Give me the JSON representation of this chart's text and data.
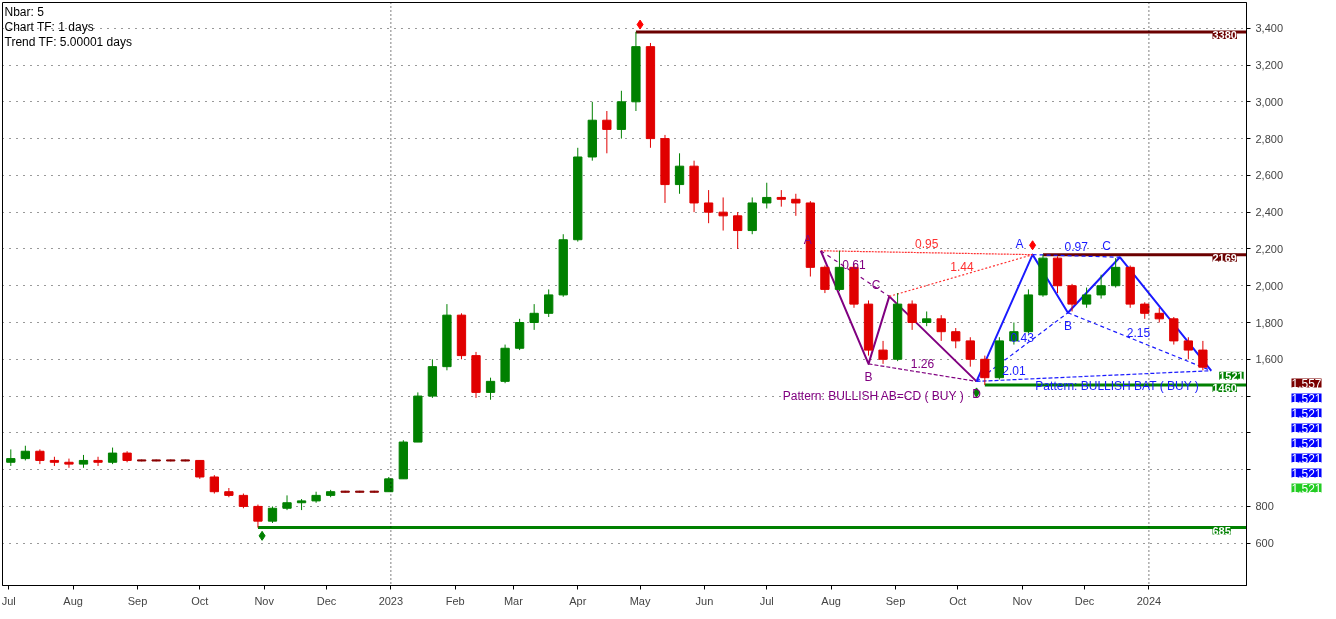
{
  "chart_data": {
    "type": "candlestick",
    "x": [
      "2022-07-02",
      "2022-07-09",
      "2022-07-16",
      "2022-07-23",
      "2022-07-30",
      "2022-08-06",
      "2022-08-13",
      "2022-08-20",
      "2022-08-27",
      "2022-09-03",
      "2022-09-10",
      "2022-09-17",
      "2022-09-24",
      "2022-10-01",
      "2022-10-08",
      "2022-10-15",
      "2022-10-22",
      "2022-10-29",
      "2022-11-05",
      "2022-11-12",
      "2022-11-19",
      "2022-11-26",
      "2022-12-03",
      "2022-12-10",
      "2022-12-17",
      "2022-12-24",
      "2022-12-31",
      "2023-01-07",
      "2023-01-14",
      "2023-01-21",
      "2023-01-28",
      "2023-02-04",
      "2023-02-11",
      "2023-02-18",
      "2023-02-25",
      "2023-03-04",
      "2023-03-11",
      "2023-03-18",
      "2023-03-25",
      "2023-04-01",
      "2023-04-08",
      "2023-04-15",
      "2023-04-22",
      "2023-04-29",
      "2023-05-06",
      "2023-05-13",
      "2023-05-20",
      "2023-05-27",
      "2023-06-03",
      "2023-06-10",
      "2023-06-17",
      "2023-06-24",
      "2023-07-01",
      "2023-07-08",
      "2023-07-15",
      "2023-07-22",
      "2023-07-29",
      "2023-08-05",
      "2023-08-12",
      "2023-08-19",
      "2023-08-26",
      "2023-09-02",
      "2023-09-09",
      "2023-09-16",
      "2023-09-23",
      "2023-09-30",
      "2023-10-07",
      "2023-10-14",
      "2023-10-21",
      "2023-10-28",
      "2023-11-04",
      "2023-11-11",
      "2023-11-18",
      "2023-11-25",
      "2023-12-02",
      "2023-12-09",
      "2023-12-16",
      "2023-12-23",
      "2023-12-30",
      "2024-01-06",
      "2024-01-13",
      "2024-01-20",
      "2024-01-27"
    ],
    "ohlc": [
      [
        1040,
        1110,
        1020,
        1060
      ],
      [
        1060,
        1130,
        1050,
        1100
      ],
      [
        1100,
        1110,
        1030,
        1050
      ],
      [
        1050,
        1070,
        1020,
        1040
      ],
      [
        1040,
        1060,
        1010,
        1030
      ],
      [
        1030,
        1080,
        1010,
        1050
      ],
      [
        1050,
        1070,
        1020,
        1040
      ],
      [
        1040,
        1120,
        1030,
        1090
      ],
      [
        1090,
        1100,
        1040,
        1050
      ],
      [
        1050,
        1055,
        1045,
        1050
      ],
      [
        1050,
        1055,
        1045,
        1050
      ],
      [
        1050,
        1055,
        1045,
        1050
      ],
      [
        1050,
        1055,
        1045,
        1050
      ],
      [
        1050,
        1050,
        950,
        960
      ],
      [
        960,
        970,
        870,
        880
      ],
      [
        880,
        900,
        850,
        860
      ],
      [
        860,
        870,
        790,
        800
      ],
      [
        800,
        810,
        685,
        720
      ],
      [
        720,
        800,
        710,
        790
      ],
      [
        790,
        860,
        780,
        820
      ],
      [
        820,
        840,
        780,
        830
      ],
      [
        830,
        880,
        820,
        860
      ],
      [
        860,
        890,
        850,
        880
      ],
      [
        880,
        885,
        875,
        880
      ],
      [
        880,
        885,
        875,
        880
      ],
      [
        880,
        885,
        875,
        880
      ],
      [
        880,
        960,
        880,
        950
      ],
      [
        950,
        1160,
        950,
        1150
      ],
      [
        1150,
        1420,
        1150,
        1400
      ],
      [
        1400,
        1600,
        1390,
        1560
      ],
      [
        1560,
        1900,
        1540,
        1840
      ],
      [
        1840,
        1850,
        1600,
        1620
      ],
      [
        1620,
        1640,
        1390,
        1420
      ],
      [
        1420,
        1500,
        1380,
        1480
      ],
      [
        1480,
        1680,
        1470,
        1660
      ],
      [
        1660,
        1820,
        1650,
        1800
      ],
      [
        1800,
        1900,
        1760,
        1850
      ],
      [
        1850,
        1980,
        1830,
        1950
      ],
      [
        1950,
        2280,
        1940,
        2250
      ],
      [
        2250,
        2750,
        2240,
        2700
      ],
      [
        2700,
        3000,
        2680,
        2900
      ],
      [
        2900,
        2950,
        2720,
        2850
      ],
      [
        2850,
        3060,
        2800,
        3000
      ],
      [
        3000,
        3380,
        2950,
        3300
      ],
      [
        3300,
        3320,
        2750,
        2800
      ],
      [
        2800,
        2820,
        2450,
        2550
      ],
      [
        2550,
        2720,
        2500,
        2650
      ],
      [
        2650,
        2680,
        2400,
        2450
      ],
      [
        2450,
        2520,
        2340,
        2400
      ],
      [
        2400,
        2480,
        2300,
        2380
      ],
      [
        2380,
        2400,
        2200,
        2300
      ],
      [
        2300,
        2480,
        2280,
        2450
      ],
      [
        2450,
        2560,
        2420,
        2480
      ],
      [
        2480,
        2520,
        2430,
        2470
      ],
      [
        2470,
        2500,
        2380,
        2450
      ],
      [
        2450,
        2460,
        2050,
        2100
      ],
      [
        2100,
        2110,
        1960,
        1980
      ],
      [
        1980,
        2190,
        1970,
        2100
      ],
      [
        2100,
        2120,
        1880,
        1900
      ],
      [
        1900,
        1920,
        1620,
        1650
      ],
      [
        1650,
        1700,
        1575,
        1600
      ],
      [
        1600,
        1960,
        1590,
        1900
      ],
      [
        1900,
        1920,
        1760,
        1800
      ],
      [
        1800,
        1860,
        1780,
        1820
      ],
      [
        1820,
        1840,
        1700,
        1750
      ],
      [
        1750,
        1770,
        1660,
        1700
      ],
      [
        1700,
        1720,
        1560,
        1600
      ],
      [
        1600,
        1620,
        1460,
        1500
      ],
      [
        1500,
        1720,
        1490,
        1700
      ],
      [
        1700,
        1800,
        1680,
        1750
      ],
      [
        1750,
        1980,
        1740,
        1950
      ],
      [
        1950,
        2169,
        1940,
        2150
      ],
      [
        2150,
        2160,
        1960,
        2000
      ],
      [
        2000,
        2010,
        1860,
        1900
      ],
      [
        1900,
        1990,
        1880,
        1950
      ],
      [
        1950,
        2060,
        1930,
        2000
      ],
      [
        2000,
        2150,
        1990,
        2100
      ],
      [
        2100,
        2110,
        1880,
        1900
      ],
      [
        1900,
        1910,
        1820,
        1850
      ],
      [
        1850,
        1880,
        1800,
        1820
      ],
      [
        1820,
        1830,
        1680,
        1700
      ],
      [
        1700,
        1720,
        1600,
        1650
      ],
      [
        1650,
        1700,
        1540,
        1557
      ]
    ],
    "colors": [
      "#008000",
      "#008000",
      "#e00000",
      "#e00000",
      "#e00000",
      "#008000",
      "#e00000",
      "#008000",
      "#e00000",
      "#8b0000",
      "#8b0000",
      "#8b0000",
      "#8b0000",
      "#e00000",
      "#e00000",
      "#e00000",
      "#e00000",
      "#e00000",
      "#008000",
      "#008000",
      "#008000",
      "#008000",
      "#008000",
      "#8b0000",
      "#8b0000",
      "#8b0000",
      "#008000",
      "#008000",
      "#008000",
      "#008000",
      "#008000",
      "#e00000",
      "#e00000",
      "#008000",
      "#008000",
      "#008000",
      "#008000",
      "#008000",
      "#008000",
      "#008000",
      "#008000",
      "#e00000",
      "#008000",
      "#008000",
      "#e00000",
      "#e00000",
      "#008000",
      "#e00000",
      "#e00000",
      "#e00000",
      "#e00000",
      "#008000",
      "#008000",
      "#e00000",
      "#e00000",
      "#e00000",
      "#e00000",
      "#008000",
      "#e00000",
      "#e00000",
      "#e00000",
      "#008000",
      "#e00000",
      "#008000",
      "#e00000",
      "#e00000",
      "#e00000",
      "#e00000",
      "#008000",
      "#008000",
      "#008000",
      "#008000",
      "#e00000",
      "#e00000",
      "#008000",
      "#008000",
      "#008000",
      "#e00000",
      "#e00000",
      "#e00000",
      "#e00000",
      "#e00000",
      "#e00000"
    ],
    "series": [
      {
        "type": "line",
        "color": "#800080",
        "line_style": "solid",
        "x": [
          "2023-07-27",
          "2023-08-19",
          "2023-08-29",
          "2023-10-10"
        ],
        "values": [
          2190,
          1575,
          1942,
          1480
        ]
      },
      {
        "type": "line",
        "color": "#1a1aff",
        "line_style": "solid",
        "x": [
          "2023-10-10",
          "2023-11-06",
          "2023-11-23",
          "2023-12-18",
          "2024-01-31"
        ],
        "values": [
          1480,
          2169,
          1853,
          2155,
          1538
        ]
      },
      {
        "type": "line",
        "color": "#ff3030",
        "line_style": "dotted",
        "x": [
          "2023-07-27",
          "2023-11-06"
        ],
        "values": [
          2190,
          2169
        ]
      },
      {
        "type": "line",
        "color": "#ff3030",
        "line_style": "dotted",
        "x": [
          "2023-08-29",
          "2023-11-06"
        ],
        "values": [
          1942,
          2169
        ]
      },
      {
        "type": "line",
        "color": "#800080",
        "line_style": "dashed",
        "x": [
          "2023-07-27",
          "2023-08-29"
        ],
        "values": [
          2190,
          1942
        ]
      },
      {
        "type": "line",
        "color": "#800080",
        "line_style": "dashed",
        "x": [
          "2023-08-19",
          "2023-10-10"
        ],
        "values": [
          1575,
          1480
        ]
      },
      {
        "type": "line",
        "color": "#1a1aff",
        "line_style": "dashed",
        "x": [
          "2023-10-10",
          "2023-11-23"
        ],
        "values": [
          1480,
          1853
        ]
      },
      {
        "type": "line",
        "color": "#1a1aff",
        "line_style": "dashed",
        "x": [
          "2023-11-23",
          "2024-01-31"
        ],
        "values": [
          1853,
          1538
        ]
      },
      {
        "type": "line",
        "color": "#1a1aff",
        "line_style": "dashed",
        "x": [
          "2023-11-06",
          "2023-12-18"
        ],
        "values": [
          2169,
          2155
        ]
      },
      {
        "type": "line",
        "color": "#1a1aff",
        "line_style": "dashed",
        "x": [
          "2023-10-10",
          "2024-01-31"
        ],
        "values": [
          1480,
          1538
        ]
      },
      {
        "type": "scatter",
        "marker": "diamond",
        "x": [
          "2022-10-31",
          "2023-05-01",
          "2023-10-10",
          "2023-11-06"
        ],
        "values": [
          640,
          3420,
          1420,
          2220
        ],
        "colors": [
          "#008000",
          "#ff0000",
          "#008000",
          "#ff0000"
        ]
      }
    ],
    "xlim": [
      "2022-06-28",
      "2024-02-17"
    ],
    "xticks": [
      {
        "value": "2022-07-01",
        "label": "Jul"
      },
      {
        "value": "2022-08-01",
        "label": "Aug"
      },
      {
        "value": "2022-09-01",
        "label": "Sep"
      },
      {
        "value": "2022-10-01",
        "label": "Oct"
      },
      {
        "value": "2022-11-01",
        "label": "Nov"
      },
      {
        "value": "2022-12-01",
        "label": "Dec"
      },
      {
        "value": "2023-01-01",
        "label": "2023"
      },
      {
        "value": "2023-02-01",
        "label": "Feb"
      },
      {
        "value": "2023-03-01",
        "label": "Mar"
      },
      {
        "value": "2023-04-01",
        "label": "Apr"
      },
      {
        "value": "2023-05-01",
        "label": "May"
      },
      {
        "value": "2023-06-01",
        "label": "Jun"
      },
      {
        "value": "2023-07-01",
        "label": "Jul"
      },
      {
        "value": "2023-08-01",
        "label": "Aug"
      },
      {
        "value": "2023-09-01",
        "label": "Sep"
      },
      {
        "value": "2023-10-01",
        "label": "Oct"
      },
      {
        "value": "2023-11-01",
        "label": "Nov"
      },
      {
        "value": "2023-12-01",
        "label": "Dec"
      },
      {
        "value": "2024-01-01",
        "label": "2024"
      }
    ],
    "ylim": [
      370,
      3540
    ],
    "yticks": [
      {
        "value": 600,
        "label": "600"
      },
      {
        "value": 800,
        "label": "800"
      },
      {
        "value": 1000,
        "label": null
      },
      {
        "value": 1200,
        "label": null
      },
      {
        "value": 1400,
        "label": null
      },
      {
        "value": 1600,
        "label": "1,600"
      },
      {
        "value": 1800,
        "label": "1,800"
      },
      {
        "value": 2000,
        "label": "2,000"
      },
      {
        "value": 2200,
        "label": "2,200"
      },
      {
        "value": 2400,
        "label": "2,400"
      },
      {
        "value": 2600,
        "label": "2,600"
      },
      {
        "value": 2800,
        "label": "2,800"
      },
      {
        "value": 3000,
        "label": "3,000"
      },
      {
        "value": 3200,
        "label": "3,200"
      },
      {
        "value": 3400,
        "label": "3,400"
      }
    ],
    "grid": "y",
    "ref_lines": [
      {
        "axis": "y",
        "value": 3380,
        "label": "3380",
        "color": "#6b0000"
      },
      {
        "axis": "y",
        "value": 2169,
        "label": "2169",
        "color": "#6b0000"
      },
      {
        "axis": "y",
        "value": 1460,
        "label": "1460",
        "color": "#008000"
      },
      {
        "axis": "y",
        "value": 685,
        "label": "685",
        "color": "#008000"
      },
      {
        "axis": "x",
        "value": "2023-01-01",
        "label": null,
        "color": "#000000",
        "line_style": "dotted"
      },
      {
        "axis": "x",
        "value": "2024-01-01",
        "label": null,
        "color": "#000000",
        "line_style": "dotted"
      }
    ],
    "annotations": [
      "Nbar: 5",
      "Chart TF: 1 days",
      "Trend TF: 5.00001 days",
      "1,557",
      "1,521",
      "1,521",
      "1,521",
      "1,521",
      "1,521",
      "1,521",
      "1,521",
      {
        "text": "1521",
        "x": "2024-01-31",
        "y": 1521
      },
      {
        "text": "A",
        "x": "2023-07-27",
        "y": 2190
      },
      {
        "text": "B",
        "x": "2023-08-19",
        "y": 1575
      },
      {
        "text": "C",
        "x": "2023-08-29",
        "y": 1942
      },
      {
        "text": "D",
        "x": "2023-10-10",
        "y": 1480
      },
      {
        "text": "0.61",
        "x": "2023-08-12",
        "y": 2066
      },
      {
        "text": "0.95",
        "x": "2023-09-16",
        "y": 2179
      },
      {
        "text": "1.44",
        "x": "2023-10-03",
        "y": 2055
      },
      {
        "text": "1.26",
        "x": "2023-09-14",
        "y": 1527
      },
      {
        "text": "Pattern: BULLISH AB=CD ( BUY )",
        "x": "2023-10-10",
        "y": 1480
      },
      {
        "text": "A",
        "x": "2023-11-06",
        "y": 2169
      },
      {
        "text": "B",
        "x": "2023-11-23",
        "y": 1853
      },
      {
        "text": "C",
        "x": "2023-12-18",
        "y": 2155
      },
      {
        "text": "0.97",
        "x": "2023-11-27",
        "y": 2162
      },
      {
        "text": "0.43",
        "x": "2023-11-01",
        "y": 1666
      },
      {
        "text": "2.15",
        "x": "2023-12-27",
        "y": 1695
      },
      {
        "text": "2.01",
        "x": "2023-10-28",
        "y": 1489
      },
      {
        "text": "Pattern: BULLISH BAT ( BUY )",
        "x": "2024-01-31",
        "y": 1538
      }
    ]
  }
}
